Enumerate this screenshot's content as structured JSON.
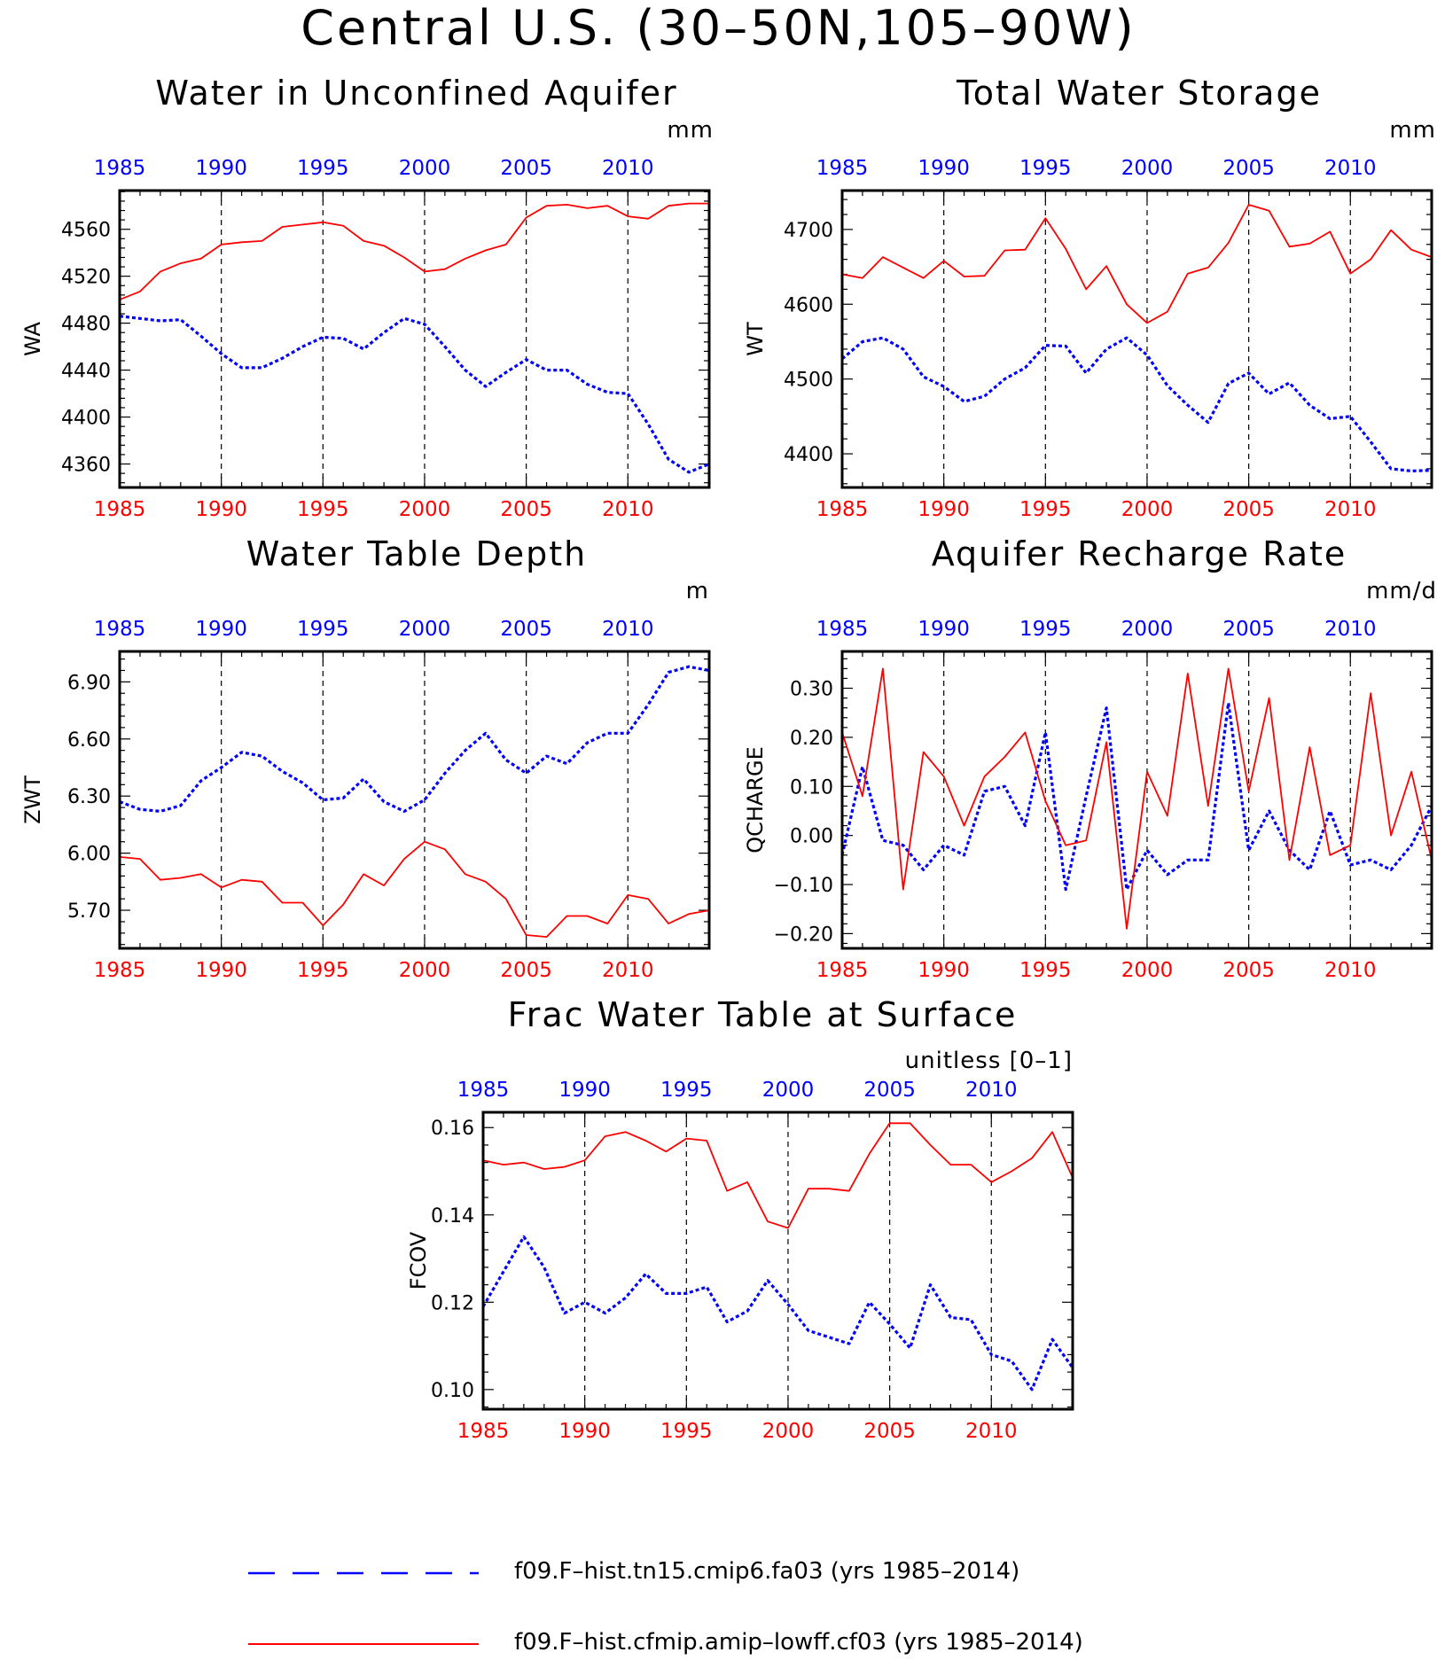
{
  "page": {
    "title": "Central U.S. (30–50N,105–90W)"
  },
  "colors": {
    "series_a": "#0000ff",
    "series_b": "#ff0000",
    "axis": "#000000",
    "grid": "#000000"
  },
  "legend": {
    "entries": [
      {
        "label": "f09.F–hist.tn15.cmip6.fa03 (yrs 1985–2014)",
        "color": "#0000ff",
        "style": "dashed"
      },
      {
        "label": "f09.F–hist.cfmip.amip–lowff.cf03 (yrs 1985–2014)",
        "color": "#ff0000",
        "style": "solid"
      }
    ]
  },
  "chart_data": [
    {
      "id": "wa",
      "type": "line",
      "title": "Water in Unconfined Aquifer",
      "units": "mm",
      "ylabel": "WA",
      "xlim": [
        1985,
        2014
      ],
      "ylim": [
        4340,
        4593
      ],
      "yticks": [
        4360,
        4400,
        4440,
        4480,
        4520,
        4560
      ],
      "ytick_labels": [
        "4360",
        "4400",
        "4440",
        "4480",
        "4520",
        "4560"
      ],
      "xticks": [
        1985,
        1990,
        1995,
        2000,
        2005,
        2010
      ],
      "xtick_labels": [
        "1985",
        "1990",
        "1995",
        "2000",
        "2005",
        "2010"
      ],
      "grid_x": [
        1990,
        1995,
        2000,
        2005,
        2010
      ],
      "x": [
        1985,
        1986,
        1987,
        1988,
        1989,
        1990,
        1991,
        1992,
        1993,
        1994,
        1995,
        1996,
        1997,
        1998,
        1999,
        2000,
        2001,
        2002,
        2003,
        2004,
        2005,
        2006,
        2007,
        2008,
        2009,
        2010,
        2011,
        2012,
        2013,
        2014
      ],
      "series": [
        {
          "key": "blue",
          "values": [
            4486,
            4484,
            4482,
            4483,
            4469,
            4454,
            4442,
            4442,
            4450,
            4460,
            4468,
            4467,
            4458,
            4472,
            4484,
            4479,
            4460,
            4440,
            4426,
            4438,
            4449,
            4440,
            4440,
            4428,
            4421,
            4420,
            4394,
            4364,
            4353,
            4360
          ]
        },
        {
          "key": "red",
          "values": [
            4500,
            4507,
            4524,
            4531,
            4535,
            4547,
            4549,
            4550,
            4562,
            4564,
            4566,
            4563,
            4550,
            4546,
            4536,
            4524,
            4526,
            4535,
            4542,
            4547,
            4570,
            4580,
            4581,
            4578,
            4580,
            4571,
            4569,
            4580,
            4582,
            4582
          ]
        }
      ]
    },
    {
      "id": "wt",
      "type": "line",
      "title": "Total Water Storage",
      "units": "mm",
      "ylabel": "WT",
      "xlim": [
        1985,
        2014
      ],
      "ylim": [
        4355,
        4752
      ],
      "yticks": [
        4400,
        4500,
        4600,
        4700
      ],
      "ytick_labels": [
        "4400",
        "4500",
        "4600",
        "4700"
      ],
      "xticks": [
        1985,
        1990,
        1995,
        2000,
        2005,
        2010
      ],
      "xtick_labels": [
        "1985",
        "1990",
        "1995",
        "2000",
        "2005",
        "2010"
      ],
      "grid_x": [
        1990,
        1995,
        2000,
        2005,
        2010
      ],
      "x": [
        1985,
        1986,
        1987,
        1988,
        1989,
        1990,
        1991,
        1992,
        1993,
        1994,
        1995,
        1996,
        1997,
        1998,
        1999,
        2000,
        2001,
        2002,
        2003,
        2004,
        2005,
        2006,
        2007,
        2008,
        2009,
        2010,
        2011,
        2012,
        2013,
        2014
      ],
      "series": [
        {
          "key": "blue",
          "values": [
            4527,
            4550,
            4555,
            4540,
            4503,
            4490,
            4470,
            4477,
            4500,
            4515,
            4545,
            4544,
            4508,
            4540,
            4555,
            4532,
            4491,
            4465,
            4442,
            4494,
            4508,
            4480,
            4495,
            4465,
            4447,
            4450,
            4416,
            4380,
            4377,
            4378
          ]
        },
        {
          "key": "red",
          "values": [
            4640,
            4635,
            4663,
            4649,
            4635,
            4658,
            4637,
            4638,
            4672,
            4673,
            4715,
            4674,
            4620,
            4651,
            4600,
            4575,
            4590,
            4641,
            4649,
            4682,
            4733,
            4725,
            4677,
            4681,
            4697,
            4641,
            4660,
            4699,
            4673,
            4663
          ]
        }
      ]
    },
    {
      "id": "zwt",
      "type": "line",
      "title": "Water Table Depth",
      "units": "m",
      "ylabel": "ZWT",
      "xlim": [
        1985,
        2014
      ],
      "ylim": [
        5.5,
        7.06
      ],
      "yticks": [
        5.7,
        6.0,
        6.3,
        6.6,
        6.9
      ],
      "ytick_labels": [
        "5.70",
        "6.00",
        "6.30",
        "6.60",
        "6.90"
      ],
      "xticks": [
        1985,
        1990,
        1995,
        2000,
        2005,
        2010
      ],
      "xtick_labels": [
        "1985",
        "1990",
        "1995",
        "2000",
        "2005",
        "2010"
      ],
      "grid_x": [
        1990,
        1995,
        2000,
        2005,
        2010
      ],
      "x": [
        1985,
        1986,
        1987,
        1988,
        1989,
        1990,
        1991,
        1992,
        1993,
        1994,
        1995,
        1996,
        1997,
        1998,
        1999,
        2000,
        2001,
        2002,
        2003,
        2004,
        2005,
        2006,
        2007,
        2008,
        2009,
        2010,
        2011,
        2012,
        2013,
        2014
      ],
      "series": [
        {
          "key": "blue",
          "values": [
            6.27,
            6.23,
            6.22,
            6.25,
            6.38,
            6.45,
            6.53,
            6.51,
            6.43,
            6.37,
            6.28,
            6.29,
            6.39,
            6.27,
            6.22,
            6.28,
            6.42,
            6.54,
            6.63,
            6.49,
            6.42,
            6.51,
            6.47,
            6.58,
            6.63,
            6.63,
            6.78,
            6.95,
            6.98,
            6.96
          ]
        },
        {
          "key": "red",
          "values": [
            5.98,
            5.97,
            5.86,
            5.87,
            5.89,
            5.82,
            5.86,
            5.85,
            5.74,
            5.74,
            5.62,
            5.73,
            5.89,
            5.83,
            5.97,
            6.06,
            6.02,
            5.89,
            5.85,
            5.76,
            5.57,
            5.56,
            5.67,
            5.67,
            5.63,
            5.78,
            5.76,
            5.63,
            5.68,
            5.7
          ]
        }
      ]
    },
    {
      "id": "qcharge",
      "type": "line",
      "title": "Aquifer Recharge Rate",
      "units": "mm/d",
      "ylabel": "QCHARGE",
      "xlim": [
        1985,
        2014
      ],
      "ylim": [
        -0.23,
        0.375
      ],
      "yticks": [
        -0.2,
        -0.1,
        0.0,
        0.1,
        0.2,
        0.3
      ],
      "ytick_labels": [
        "−0.20",
        "−0.10",
        "0.00",
        "0.10",
        "0.20",
        "0.30"
      ],
      "xticks": [
        1985,
        1990,
        1995,
        2000,
        2005,
        2010
      ],
      "xtick_labels": [
        "1985",
        "1990",
        "1995",
        "2000",
        "2005",
        "2010"
      ],
      "grid_x": [
        1990,
        1995,
        2000,
        2005,
        2010
      ],
      "x": [
        1985,
        1986,
        1987,
        1988,
        1989,
        1990,
        1991,
        1992,
        1993,
        1994,
        1995,
        1996,
        1997,
        1998,
        1999,
        2000,
        2001,
        2002,
        2003,
        2004,
        2005,
        2006,
        2007,
        2008,
        2009,
        2010,
        2011,
        2012,
        2013,
        2014
      ],
      "series": [
        {
          "key": "blue",
          "values": [
            -0.04,
            0.14,
            -0.01,
            -0.02,
            -0.07,
            -0.02,
            -0.04,
            0.09,
            0.1,
            0.02,
            0.21,
            -0.11,
            0.08,
            0.26,
            -0.11,
            -0.03,
            -0.08,
            -0.05,
            -0.05,
            0.27,
            -0.03,
            0.05,
            -0.03,
            -0.07,
            0.05,
            -0.06,
            -0.05,
            -0.07,
            -0.02,
            0.06
          ]
        },
        {
          "key": "red",
          "values": [
            0.21,
            0.08,
            0.34,
            -0.11,
            0.17,
            0.12,
            0.02,
            0.12,
            0.16,
            0.21,
            0.07,
            -0.02,
            -0.01,
            0.19,
            -0.19,
            0.13,
            0.04,
            0.33,
            0.06,
            0.34,
            0.09,
            0.28,
            -0.05,
            0.18,
            -0.04,
            -0.02,
            0.29,
            0.0,
            0.13,
            -0.05
          ]
        }
      ]
    },
    {
      "id": "fcov",
      "type": "line",
      "title": "Frac Water Table at Surface",
      "units": "unitless [0–1]",
      "ylabel": "FCOV",
      "xlim": [
        1985,
        2014
      ],
      "ylim": [
        0.0955,
        0.1635
      ],
      "yticks": [
        0.1,
        0.12,
        0.14,
        0.16
      ],
      "ytick_labels": [
        "0.10",
        "0.12",
        "0.14",
        "0.16"
      ],
      "xticks": [
        1985,
        1990,
        1995,
        2000,
        2005,
        2010
      ],
      "xtick_labels": [
        "1985",
        "1990",
        "1995",
        "2000",
        "2005",
        "2010"
      ],
      "grid_x": [
        1990,
        1995,
        2000,
        2005,
        2010
      ],
      "x": [
        1985,
        1986,
        1987,
        1988,
        1989,
        1990,
        1991,
        1992,
        1993,
        1994,
        1995,
        1996,
        1997,
        1998,
        1999,
        2000,
        2001,
        2002,
        2003,
        2004,
        2005,
        2006,
        2007,
        2008,
        2009,
        2010,
        2011,
        2012,
        2013,
        2014
      ],
      "series": [
        {
          "key": "blue",
          "values": [
            0.119,
            0.127,
            0.135,
            0.128,
            0.1175,
            0.12,
            0.1175,
            0.121,
            0.1265,
            0.122,
            0.122,
            0.1235,
            0.1155,
            0.118,
            0.125,
            0.1195,
            0.1135,
            0.112,
            0.1105,
            0.12,
            0.115,
            0.1095,
            0.124,
            0.1165,
            0.116,
            0.108,
            0.1065,
            0.1,
            0.1115,
            0.105
          ]
        },
        {
          "key": "red",
          "values": [
            0.1525,
            0.1515,
            0.152,
            0.1505,
            0.151,
            0.1525,
            0.158,
            0.159,
            0.157,
            0.1545,
            0.1575,
            0.157,
            0.1455,
            0.1475,
            0.1385,
            0.137,
            0.146,
            0.146,
            0.1455,
            0.154,
            0.161,
            0.161,
            0.156,
            0.1515,
            0.1515,
            0.1475,
            0.15,
            0.153,
            0.159,
            0.1485
          ]
        }
      ]
    }
  ]
}
